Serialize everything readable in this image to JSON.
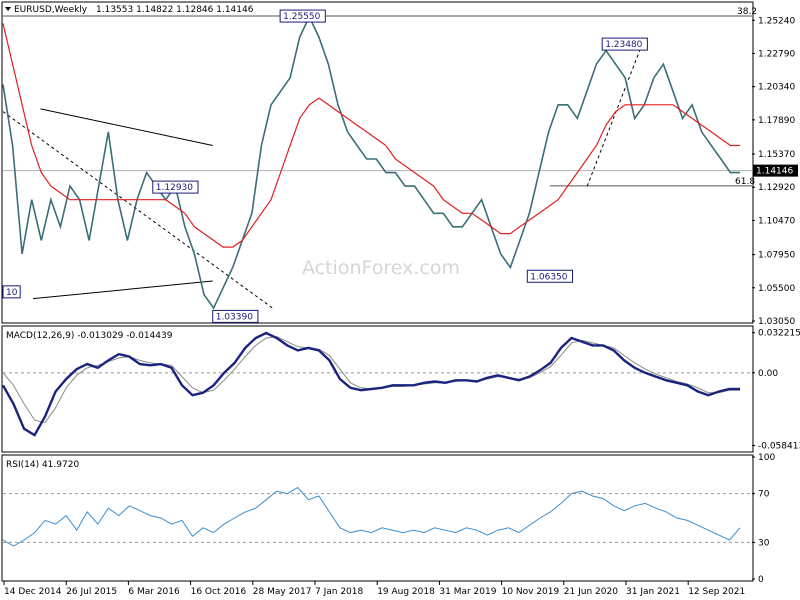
{
  "chart_data": [
    {
      "type": "line",
      "panel": "price",
      "title": "EURUSD,Weekly",
      "ohlc_values": [
        "1.13553",
        "1.14822",
        "1.12846",
        "1.14146"
      ],
      "last_price": "1.14146",
      "watermark": "ActionForex.com",
      "y_ticks": [
        "1.25240",
        "1.22790",
        "1.20340",
        "1.17890",
        "1.15370",
        "1.12920",
        "1.10470",
        "1.07950",
        "1.05500",
        "1.03050"
      ],
      "ylim": [
        1.0305,
        1.2644
      ],
      "annotations": [
        {
          "label": "1.25550",
          "value": 1.2555
        },
        {
          "label": "1.23480",
          "value": 1.2348
        },
        {
          "label": "1.12930",
          "value": 1.1293
        },
        {
          "label": "1.03390",
          "value": 1.0339
        },
        {
          "label": "1.06350",
          "value": 1.0635
        },
        {
          "label": "10",
          "value": 1.052
        }
      ],
      "fib_levels": [
        {
          "label": "38.2",
          "value": 1.2555
        },
        {
          "label": "61.8",
          "value": 1.1302
        }
      ],
      "series": [
        {
          "name": "price",
          "color": "#3a6e78",
          "values": [
            1.205,
            1.16,
            1.08,
            1.12,
            1.09,
            1.12,
            1.1,
            1.13,
            1.12,
            1.09,
            1.13,
            1.17,
            1.12,
            1.09,
            1.12,
            1.14,
            1.13,
            1.12,
            1.13,
            1.1,
            1.08,
            1.05,
            1.04,
            1.055,
            1.07,
            1.09,
            1.11,
            1.16,
            1.19,
            1.2,
            1.21,
            1.24,
            1.255,
            1.24,
            1.22,
            1.19,
            1.17,
            1.16,
            1.15,
            1.15,
            1.14,
            1.14,
            1.13,
            1.13,
            1.12,
            1.11,
            1.11,
            1.1,
            1.1,
            1.11,
            1.12,
            1.1,
            1.08,
            1.07,
            1.09,
            1.11,
            1.14,
            1.17,
            1.19,
            1.19,
            1.18,
            1.2,
            1.22,
            1.23,
            1.22,
            1.21,
            1.18,
            1.19,
            1.21,
            1.22,
            1.2,
            1.18,
            1.19,
            1.17,
            1.16,
            1.15,
            1.14,
            1.14
          ]
        },
        {
          "name": "MA",
          "color": "#e02020",
          "values": [
            1.25,
            1.22,
            1.19,
            1.16,
            1.14,
            1.13,
            1.125,
            1.12,
            1.12,
            1.12,
            1.12,
            1.12,
            1.12,
            1.12,
            1.12,
            1.12,
            1.12,
            1.12,
            1.115,
            1.11,
            1.1,
            1.095,
            1.09,
            1.085,
            1.085,
            1.09,
            1.1,
            1.11,
            1.12,
            1.14,
            1.16,
            1.18,
            1.19,
            1.195,
            1.19,
            1.185,
            1.18,
            1.175,
            1.17,
            1.165,
            1.16,
            1.15,
            1.145,
            1.14,
            1.135,
            1.13,
            1.12,
            1.115,
            1.11,
            1.11,
            1.105,
            1.1,
            1.095,
            1.095,
            1.1,
            1.105,
            1.11,
            1.115,
            1.12,
            1.13,
            1.14,
            1.15,
            1.16,
            1.175,
            1.185,
            1.19,
            1.19,
            1.19,
            1.19,
            1.19,
            1.19,
            1.185,
            1.18,
            1.175,
            1.17,
            1.165,
            1.16,
            1.16
          ]
        }
      ],
      "trendlines": [
        {
          "x0": 0.0,
          "y0": 1.185,
          "x1": 0.36,
          "y1": 1.04
        },
        {
          "x0": 0.05,
          "y0": 1.187,
          "x1": 0.28,
          "y1": 1.16
        },
        {
          "x0": 0.04,
          "y0": 1.047,
          "x1": 0.28,
          "y1": 1.06
        },
        {
          "x0": 0.78,
          "y0": 1.13,
          "x1": 0.85,
          "y1": 1.23
        }
      ]
    },
    {
      "type": "line",
      "panel": "macd",
      "title": "MACD(12,26,9) -0.013029 -0.014439",
      "y_ticks": [
        "0.032215",
        "0.00",
        "-0.058413"
      ],
      "ylim": [
        -0.062,
        0.036
      ],
      "series": [
        {
          "name": "MACD",
          "color": "#1a237e",
          "values": [
            -0.01,
            -0.025,
            -0.045,
            -0.05,
            -0.035,
            -0.015,
            -0.005,
            0.003,
            0.007,
            0.004,
            0.01,
            0.015,
            0.013,
            0.007,
            0.006,
            0.007,
            0.004,
            -0.01,
            -0.018,
            -0.016,
            -0.01,
            0.0,
            0.008,
            0.02,
            0.028,
            0.032,
            0.028,
            0.022,
            0.018,
            0.02,
            0.018,
            0.01,
            -0.005,
            -0.012,
            -0.014,
            -0.013,
            -0.012,
            -0.01,
            -0.01,
            -0.01,
            -0.008,
            -0.007,
            -0.008,
            -0.006,
            -0.006,
            -0.007,
            -0.004,
            -0.002,
            -0.004,
            -0.006,
            -0.003,
            0.002,
            0.008,
            0.02,
            0.028,
            0.025,
            0.022,
            0.022,
            0.018,
            0.01,
            0.004,
            0.0,
            -0.003,
            -0.006,
            -0.008,
            -0.01,
            -0.015,
            -0.018,
            -0.015,
            -0.013,
            -0.013
          ]
        },
        {
          "name": "Signal",
          "color": "#8a8a8a",
          "values": [
            0.0,
            -0.01,
            -0.025,
            -0.038,
            -0.04,
            -0.028,
            -0.012,
            -0.002,
            0.004,
            0.006,
            0.009,
            0.012,
            0.013,
            0.01,
            0.008,
            0.007,
            0.006,
            -0.003,
            -0.012,
            -0.016,
            -0.014,
            -0.006,
            0.003,
            0.013,
            0.022,
            0.028,
            0.029,
            0.025,
            0.021,
            0.02,
            0.019,
            0.014,
            0.003,
            -0.008,
            -0.012,
            -0.013,
            -0.012,
            -0.011,
            -0.011,
            -0.01,
            -0.009,
            -0.008,
            -0.008,
            -0.007,
            -0.006,
            -0.007,
            -0.005,
            -0.003,
            -0.004,
            -0.005,
            -0.004,
            0.0,
            0.005,
            0.014,
            0.024,
            0.026,
            0.024,
            0.022,
            0.02,
            0.014,
            0.008,
            0.003,
            -0.001,
            -0.004,
            -0.007,
            -0.009,
            -0.012,
            -0.016,
            -0.016,
            -0.014,
            -0.014
          ]
        }
      ]
    },
    {
      "type": "line",
      "panel": "rsi",
      "title": "RSI(14) 41.9720",
      "y_ticks": [
        "100",
        "70",
        "30",
        "0"
      ],
      "ylim": [
        0,
        100
      ],
      "series": [
        {
          "name": "RSI",
          "color": "#3b8ed0",
          "values": [
            32,
            27,
            32,
            38,
            48,
            45,
            52,
            40,
            55,
            45,
            58,
            52,
            60,
            56,
            52,
            50,
            45,
            48,
            35,
            42,
            38,
            45,
            50,
            55,
            58,
            65,
            72,
            70,
            75,
            65,
            68,
            55,
            42,
            38,
            40,
            38,
            42,
            40,
            38,
            40,
            38,
            42,
            40,
            38,
            42,
            40,
            36,
            40,
            42,
            38,
            44,
            50,
            55,
            62,
            70,
            72,
            68,
            66,
            60,
            56,
            60,
            62,
            58,
            55,
            50,
            48,
            44,
            40,
            36,
            32,
            42
          ]
        }
      ],
      "reference_lines": [
        70,
        30
      ]
    }
  ],
  "x_axis_labels": [
    "14 Dec 2014",
    "26 Jul 2015",
    "6 Mar 2016",
    "16 Oct 2016",
    "28 May 2017",
    "7 Jan 2018",
    "19 Aug 2018",
    "31 Mar 2019",
    "10 Nov 2019",
    "21 Jun 2020",
    "31 Jan 2021",
    "12 Sep 2021"
  ],
  "colors": {
    "price": "#3a6e78",
    "ma": "#e02020",
    "macd": "#1a237e",
    "signal": "#8a8a8a",
    "rsi": "#3b8ed0",
    "label_box": "#1a1a7a"
  }
}
